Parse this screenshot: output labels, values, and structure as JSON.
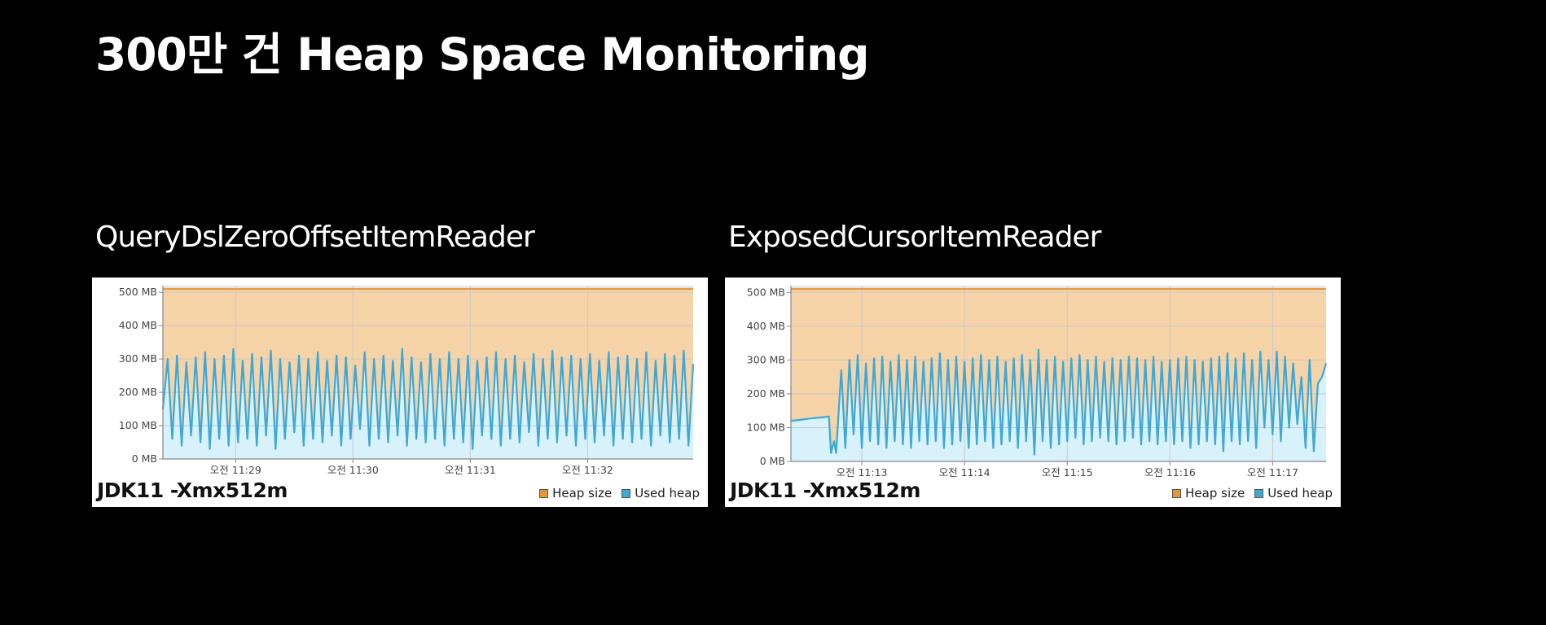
{
  "slide": {
    "title": "300만 건 Heap Space Monitoring"
  },
  "colors": {
    "background": "#000000",
    "heap_size_line": "#e8953a",
    "heap_size_fill": "#f7d3a8",
    "used_heap_line": "#3ea8d6",
    "used_heap_fill": "#d7f2fb"
  },
  "charts": [
    {
      "heading": "QueryDslZeroOffsetItemReader",
      "caption": "JDK11 -Xmx512m",
      "legend": {
        "heap_size": "Heap size",
        "used_heap": "Used heap"
      }
    },
    {
      "heading": "ExposedCursorItemReader",
      "caption": "JDK11 -Xmx512m",
      "legend": {
        "heap_size": "Heap size",
        "used_heap": "Used heap"
      }
    }
  ],
  "chart_data": [
    {
      "type": "area",
      "title": "QueryDslZeroOffsetItemReader",
      "x_tick_labels": [
        "오전 11:29",
        "오전 11:30",
        "오전 11:31",
        "오전 11:32"
      ],
      "x_tick_minutes": [
        0,
        1,
        2,
        3
      ],
      "x_range_minutes": [
        -0.62,
        3.9
      ],
      "y_tick_labels": [
        "0 MB",
        "100 MB",
        "200 MB",
        "300 MB",
        "400 MB",
        "500 MB"
      ],
      "y_ticks": [
        0,
        100,
        200,
        300,
        400,
        500
      ],
      "ylim": [
        0,
        520
      ],
      "grid": true,
      "legend_position": "bottom-right",
      "series": [
        {
          "name": "Heap size",
          "x_minutes": [
            -0.62,
            3.9
          ],
          "values": [
            510,
            510
          ]
        },
        {
          "name": "Used heap",
          "x_minutes": [
            -0.62,
            -0.58,
            -0.54,
            -0.5,
            -0.46,
            -0.42,
            -0.38,
            -0.34,
            -0.3,
            -0.26,
            -0.22,
            -0.18,
            -0.14,
            -0.1,
            -0.06,
            -0.02,
            0.02,
            0.06,
            0.1,
            0.14,
            0.18,
            0.22,
            0.26,
            0.3,
            0.34,
            0.38,
            0.42,
            0.46,
            0.5,
            0.54,
            0.58,
            0.62,
            0.66,
            0.7,
            0.74,
            0.78,
            0.82,
            0.86,
            0.9,
            0.94,
            0.98,
            1.02,
            1.06,
            1.1,
            1.14,
            1.18,
            1.22,
            1.26,
            1.3,
            1.34,
            1.38,
            1.42,
            1.46,
            1.5,
            1.54,
            1.58,
            1.62,
            1.66,
            1.7,
            1.74,
            1.78,
            1.82,
            1.86,
            1.9,
            1.94,
            1.98,
            2.02,
            2.06,
            2.1,
            2.14,
            2.18,
            2.22,
            2.26,
            2.3,
            2.34,
            2.38,
            2.42,
            2.46,
            2.5,
            2.54,
            2.58,
            2.62,
            2.66,
            2.7,
            2.74,
            2.78,
            2.82,
            2.86,
            2.9,
            2.94,
            2.98,
            3.02,
            3.06,
            3.1,
            3.14,
            3.18,
            3.22,
            3.26,
            3.3,
            3.34,
            3.38,
            3.42,
            3.46,
            3.5,
            3.54,
            3.58,
            3.62,
            3.66,
            3.7,
            3.74,
            3.78,
            3.82,
            3.86,
            3.9
          ],
          "values": [
            150,
            300,
            60,
            310,
            40,
            290,
            70,
            305,
            50,
            320,
            30,
            300,
            60,
            310,
            40,
            330,
            50,
            295,
            60,
            315,
            40,
            305,
            70,
            325,
            30,
            300,
            60,
            290,
            80,
            310,
            40,
            300,
            60,
            320,
            50,
            295,
            70,
            310,
            40,
            305,
            60,
            280,
            90,
            320,
            40,
            300,
            60,
            310,
            50,
            295,
            70,
            330,
            40,
            305,
            60,
            290,
            50,
            315,
            60,
            300,
            40,
            320,
            60,
            300,
            50,
            310,
            30,
            295,
            70,
            305,
            60,
            320,
            40,
            300,
            60,
            310,
            50,
            290,
            80,
            315,
            40,
            300,
            60,
            325,
            50,
            305,
            70,
            310,
            40,
            300,
            60,
            315,
            50,
            295,
            70,
            320,
            40,
            305,
            60,
            310,
            50,
            300,
            60,
            320,
            40,
            295,
            70,
            315,
            50,
            310,
            60,
            325,
            40,
            285
          ]
        }
      ]
    },
    {
      "type": "area",
      "title": "ExposedCursorItemReader",
      "x_tick_labels": [
        "오전 11:13",
        "오전 11:14",
        "오전 11:15",
        "오전 11:16",
        "오전 11:17"
      ],
      "x_tick_minutes": [
        0,
        1,
        2,
        3,
        4
      ],
      "x_range_minutes": [
        -0.69,
        4.52
      ],
      "y_tick_labels": [
        "0 MB",
        "100 MB",
        "200 MB",
        "300 MB",
        "400 MB",
        "500 MB"
      ],
      "y_ticks": [
        0,
        100,
        200,
        300,
        400,
        500
      ],
      "ylim": [
        0,
        520
      ],
      "grid": true,
      "legend_position": "bottom-right",
      "series": [
        {
          "name": "Heap size",
          "x_minutes": [
            -0.69,
            4.52
          ],
          "values": [
            510,
            510
          ]
        },
        {
          "name": "Used heap",
          "x_minutes": [
            -0.69,
            -0.6,
            -0.5,
            -0.4,
            -0.32,
            -0.3,
            -0.27,
            -0.25,
            -0.2,
            -0.16,
            -0.12,
            -0.08,
            -0.04,
            0.0,
            0.04,
            0.08,
            0.12,
            0.16,
            0.2,
            0.24,
            0.28,
            0.32,
            0.36,
            0.4,
            0.44,
            0.48,
            0.52,
            0.56,
            0.6,
            0.64,
            0.68,
            0.72,
            0.76,
            0.8,
            0.84,
            0.88,
            0.92,
            0.96,
            1.0,
            1.04,
            1.08,
            1.12,
            1.16,
            1.2,
            1.24,
            1.28,
            1.32,
            1.36,
            1.4,
            1.44,
            1.48,
            1.52,
            1.56,
            1.6,
            1.64,
            1.68,
            1.72,
            1.76,
            1.8,
            1.84,
            1.88,
            1.92,
            1.96,
            2.0,
            2.04,
            2.08,
            2.12,
            2.16,
            2.2,
            2.24,
            2.28,
            2.32,
            2.36,
            2.4,
            2.44,
            2.48,
            2.52,
            2.56,
            2.6,
            2.64,
            2.68,
            2.72,
            2.76,
            2.8,
            2.84,
            2.88,
            2.92,
            2.96,
            3.0,
            3.04,
            3.08,
            3.12,
            3.16,
            3.2,
            3.24,
            3.28,
            3.32,
            3.36,
            3.4,
            3.44,
            3.48,
            3.52,
            3.56,
            3.6,
            3.64,
            3.68,
            3.72,
            3.76,
            3.8,
            3.84,
            3.88,
            3.92,
            3.96,
            4.0,
            4.04,
            4.08,
            4.12,
            4.16,
            4.2,
            4.24,
            4.28,
            4.32,
            4.36,
            4.4,
            4.44,
            4.48,
            4.52
          ],
          "values": [
            120,
            123,
            127,
            130,
            133,
            25,
            60,
            25,
            270,
            40,
            300,
            80,
            315,
            40,
            290,
            60,
            305,
            50,
            310,
            40,
            295,
            60,
            315,
            50,
            300,
            40,
            310,
            60,
            295,
            50,
            305,
            60,
            320,
            40,
            300,
            50,
            310,
            60,
            295,
            40,
            305,
            50,
            315,
            60,
            300,
            40,
            310,
            50,
            295,
            60,
            305,
            40,
            315,
            60,
            300,
            20,
            330,
            60,
            300,
            40,
            310,
            50,
            295,
            60,
            305,
            70,
            315,
            50,
            300,
            60,
            310,
            70,
            295,
            60,
            305,
            50,
            300,
            60,
            310,
            70,
            305,
            50,
            300,
            60,
            310,
            50,
            295,
            60,
            300,
            50,
            305,
            60,
            310,
            40,
            300,
            50,
            295,
            60,
            305,
            50,
            310,
            30,
            320,
            60,
            305,
            50,
            320,
            60,
            300,
            40,
            325,
            100,
            300,
            80,
            325,
            60,
            310,
            100,
            290,
            110,
            250,
            40,
            300,
            30,
            230,
            250,
            290
          ]
        }
      ]
    }
  ]
}
